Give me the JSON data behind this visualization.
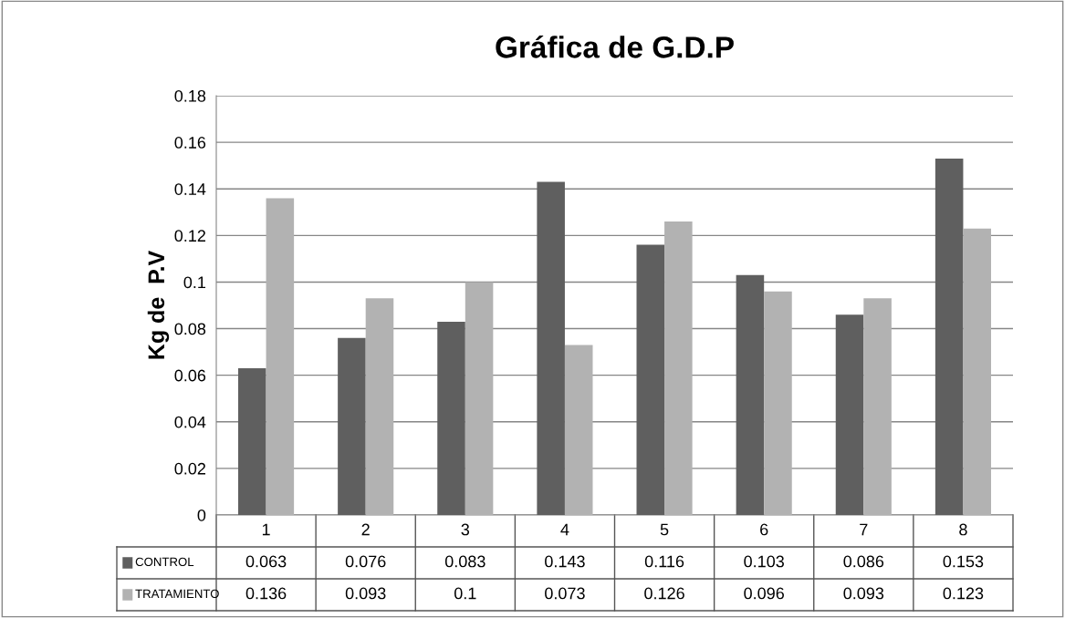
{
  "chart_data": {
    "type": "bar",
    "title": "Gráfica de G.D.P",
    "ylabel": "Kg de  P.V",
    "categories": [
      "1",
      "2",
      "3",
      "4",
      "5",
      "6",
      "7",
      "8"
    ],
    "series": [
      {
        "name": "CONTROL",
        "color": "#5f5f5f",
        "values": [
          0.063,
          0.076,
          0.083,
          0.143,
          0.116,
          0.103,
          0.086,
          0.153
        ]
      },
      {
        "name": "TRATAMIENTO",
        "color": "#b2b2b2",
        "values": [
          0.136,
          0.093,
          0.1,
          0.073,
          0.126,
          0.096,
          0.093,
          0.123
        ]
      }
    ],
    "ylim": [
      0,
      0.18
    ],
    "yticks": [
      0,
      0.02,
      0.04,
      0.06,
      0.08,
      0.1,
      0.12,
      0.14,
      0.16,
      0.18
    ],
    "grid": "y",
    "legend": "bottom",
    "data_labels": true
  }
}
